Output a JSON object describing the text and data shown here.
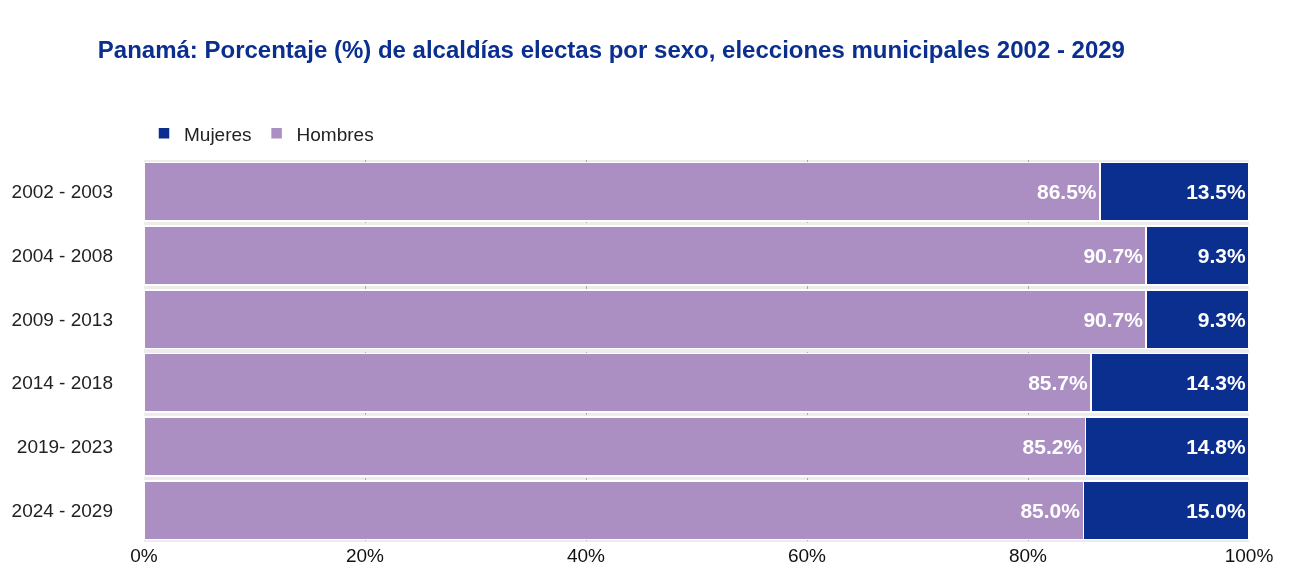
{
  "chart_data": {
    "type": "bar",
    "orientation": "horizontal",
    "stacked": true,
    "title": "Panamá: Porcentaje (%) de alcaldías electas por sexo, elecciones municipales 2002 - 2029",
    "categories": [
      "2002 - 2003",
      "2004 - 2008",
      "2009 - 2013",
      "2014 - 2018",
      "2019- 2023",
      "2024 - 2029"
    ],
    "series": [
      {
        "name": "Hombres",
        "color": "#ab8fc3",
        "values": [
          86.5,
          90.7,
          90.7,
          85.7,
          85.2,
          85.0
        ],
        "value_labels": [
          "86.5%",
          "90.7%",
          "90.7%",
          "85.7%",
          "85.2%",
          "85.0%"
        ]
      },
      {
        "name": "Mujeres",
        "color": "#0a2f8f",
        "values": [
          13.5,
          9.3,
          9.3,
          14.3,
          14.8,
          15.0
        ],
        "value_labels": [
          "13.5%",
          "9.3%",
          "9.3%",
          "14.3%",
          "14.8%",
          "15.0%"
        ]
      }
    ],
    "xlim": [
      0,
      100
    ],
    "xticks": [
      {
        "value": 0,
        "label": "0%"
      },
      {
        "value": 20,
        "label": "20%"
      },
      {
        "value": 40,
        "label": "40%"
      },
      {
        "value": 60,
        "label": "60%"
      },
      {
        "value": 80,
        "label": "80%"
      },
      {
        "value": 100,
        "label": "100%"
      }
    ],
    "grid": "x",
    "legend": "top left"
  }
}
